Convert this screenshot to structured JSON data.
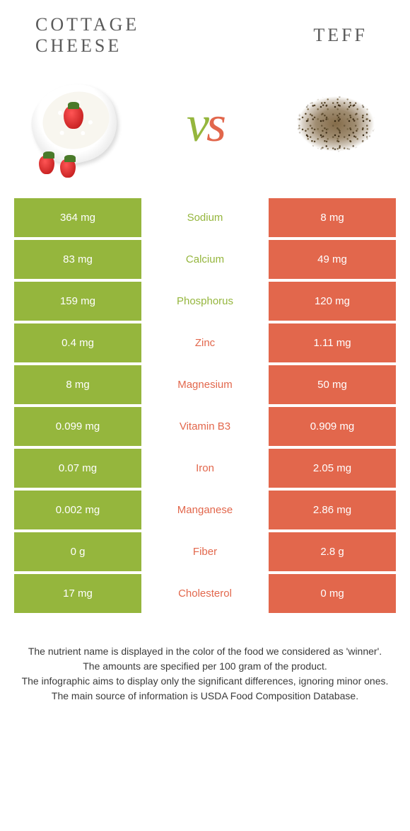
{
  "colors": {
    "left": "#95b63d",
    "right": "#e2674c",
    "text_dark": "#5a5a5a"
  },
  "foods": {
    "left": "Cottage cheese",
    "right": "Teff"
  },
  "vs": {
    "v": "v",
    "s": "s"
  },
  "rows": [
    {
      "nutrient": "Sodium",
      "left": "364 mg",
      "right": "8 mg",
      "winner": "left"
    },
    {
      "nutrient": "Calcium",
      "left": "83 mg",
      "right": "49 mg",
      "winner": "left"
    },
    {
      "nutrient": "Phosphorus",
      "left": "159 mg",
      "right": "120 mg",
      "winner": "left"
    },
    {
      "nutrient": "Zinc",
      "left": "0.4 mg",
      "right": "1.11 mg",
      "winner": "right"
    },
    {
      "nutrient": "Magnesium",
      "left": "8 mg",
      "right": "50 mg",
      "winner": "right"
    },
    {
      "nutrient": "Vitamin B3",
      "left": "0.099 mg",
      "right": "0.909 mg",
      "winner": "right"
    },
    {
      "nutrient": "Iron",
      "left": "0.07 mg",
      "right": "2.05 mg",
      "winner": "right"
    },
    {
      "nutrient": "Manganese",
      "left": "0.002 mg",
      "right": "2.86 mg",
      "winner": "right"
    },
    {
      "nutrient": "Fiber",
      "left": "0 g",
      "right": "2.8 g",
      "winner": "right"
    },
    {
      "nutrient": "Cholesterol",
      "left": "17 mg",
      "right": "0 mg",
      "winner": "right"
    }
  ],
  "footer": [
    "The nutrient name is displayed in the color of the food we considered as 'winner'.",
    "The amounts are specified per 100 gram of the product.",
    "The infographic aims to display only the significant differences, ignoring minor ones.",
    "The main source of information is USDA Food Composition Database."
  ]
}
